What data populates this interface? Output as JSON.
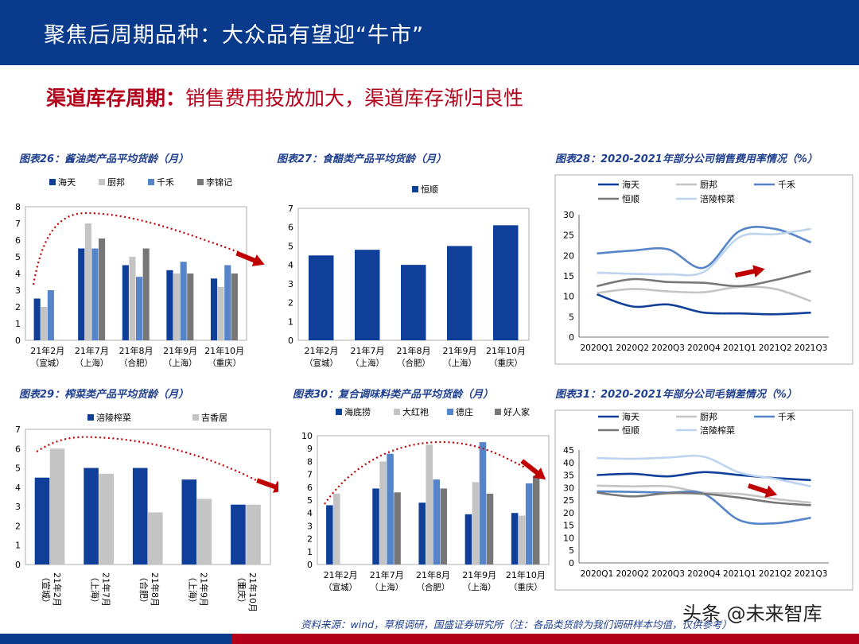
{
  "header": {
    "title": "聚焦后周期品种：大众品有望迎“牛市”"
  },
  "subtitle": {
    "lead": "渠道库存周期：",
    "rest": "销售费用投放加大，渠道库存渐归良性"
  },
  "source": "资料来源：wind，草根调研，国盛证券研究所（注：各品类货龄为我们调研样本均值，仅供参考）",
  "watermark": "头条 @未来智库",
  "colors": {
    "navy": "#0f3f99",
    "gray": "#c4c4c4",
    "blue": "#5585c8",
    "dark": "#777777",
    "light": "#bcd4ee",
    "red": "#c00000"
  },
  "chart_data": [
    {
      "id": "c26",
      "type": "bar",
      "title": "图表26：酱油类产品平均货龄（月）",
      "categories": [
        "21年2月",
        "21年7月",
        "21年8月",
        "21年9月",
        "21年10月"
      ],
      "sublabels": [
        "（宣城）",
        "（上海）",
        "（合肥）",
        "（上海）",
        "（重庆）"
      ],
      "ylim": [
        0,
        8
      ],
      "yticks": [
        0,
        1,
        2,
        3,
        4,
        5,
        6,
        7,
        8
      ],
      "series": [
        {
          "name": "海天",
          "values": [
            2.5,
            5.5,
            4.5,
            4.2,
            3.7
          ]
        },
        {
          "name": "厨邦",
          "values": [
            2.0,
            7.0,
            5.0,
            4.0,
            3.2
          ]
        },
        {
          "name": "千禾",
          "values": [
            3.0,
            5.5,
            3.8,
            4.7,
            4.5
          ]
        },
        {
          "name": "李锦记",
          "values": [
            null,
            6.1,
            5.5,
            4.0,
            4.0
          ]
        }
      ]
    },
    {
      "id": "c27",
      "type": "bar",
      "title": "图表27：食醋类产品平均货龄（月）",
      "categories": [
        "21年2月",
        "21年7月",
        "21年8月",
        "21年9月",
        "21年10月"
      ],
      "sublabels": [
        "（宣城）",
        "（上海）",
        "（合肥）",
        "（上海）",
        "（重庆）"
      ],
      "ylim": [
        0,
        7
      ],
      "yticks": [
        0,
        1,
        2,
        3,
        4,
        5,
        6,
        7
      ],
      "series": [
        {
          "name": "恒顺",
          "values": [
            4.5,
            4.8,
            4.0,
            5.0,
            6.1
          ]
        }
      ]
    },
    {
      "id": "c28",
      "type": "line",
      "title": "图表28：2020-2021年部分公司销售费用率情况（%）",
      "categories": [
        "2020Q1",
        "2020Q2",
        "2020Q3",
        "2020Q4",
        "2021Q1",
        "2021Q2",
        "2021Q3"
      ],
      "ylim": [
        0,
        30
      ],
      "yticks": [
        0,
        5,
        10,
        15,
        20,
        25,
        30
      ],
      "series": [
        {
          "name": "海天",
          "values": [
            10.5,
            7.5,
            8.0,
            6.0,
            5.8,
            5.6,
            6.0
          ]
        },
        {
          "name": "厨邦",
          "values": [
            10.8,
            11.8,
            11.2,
            11.0,
            12.3,
            11.8,
            8.8
          ]
        },
        {
          "name": "千禾",
          "values": [
            20.5,
            21.2,
            21.5,
            17.0,
            26.0,
            26.5,
            23.2
          ]
        },
        {
          "name": "恒顺",
          "values": [
            12.5,
            14.2,
            13.5,
            13.3,
            12.5,
            14.0,
            16.2
          ]
        },
        {
          "name": "涪陵榨菜",
          "values": [
            15.8,
            15.5,
            15.4,
            16.0,
            24.5,
            25.2,
            26.5
          ]
        }
      ]
    },
    {
      "id": "c29",
      "type": "bar",
      "title": "图表29：榨菜类产品平均货龄（月）",
      "categories": [
        "21年2月",
        "21年7月",
        "21年8月",
        "21年9月",
        "21年10月"
      ],
      "sublabels": [
        "（宣城）",
        "（上海）",
        "（合肥）",
        "（上海）",
        "（重庆）"
      ],
      "ylim": [
        0,
        7
      ],
      "yticks": [
        0,
        1,
        2,
        3,
        4,
        5,
        6,
        7
      ],
      "series": [
        {
          "name": "涪陵榨菜",
          "values": [
            4.5,
            5.0,
            5.0,
            4.4,
            3.1
          ]
        },
        {
          "name": "吉香居",
          "values": [
            6.0,
            4.7,
            2.7,
            3.4,
            3.1
          ]
        }
      ]
    },
    {
      "id": "c30",
      "type": "bar",
      "title": "图表30：复合调味料类产品平均货龄（月）",
      "categories": [
        "21年2月",
        "21年7月",
        "21年8月",
        "21年9月",
        "21年10月"
      ],
      "sublabels": [
        "（宣城）",
        "（上海）",
        "（合肥）",
        "（上海）",
        "（重庆）"
      ],
      "ylim": [
        0,
        10
      ],
      "yticks": [
        0,
        1,
        2,
        3,
        4,
        5,
        6,
        7,
        8,
        9,
        10
      ],
      "series": [
        {
          "name": "海底捞",
          "values": [
            4.6,
            5.9,
            4.8,
            3.9,
            4.0
          ]
        },
        {
          "name": "大红袍",
          "values": [
            5.5,
            8.0,
            9.3,
            6.4,
            3.8
          ]
        },
        {
          "name": "德庄",
          "values": [
            null,
            8.6,
            6.6,
            9.5,
            6.3
          ]
        },
        {
          "name": "好人家",
          "values": [
            null,
            5.6,
            5.9,
            5.5,
            6.9
          ]
        }
      ]
    },
    {
      "id": "c31",
      "type": "line",
      "title": "图表31：2020-2021年部分公司毛销差情况（%）",
      "categories": [
        "2020Q1",
        "2020Q2",
        "2020Q3",
        "2020Q4",
        "2021Q1",
        "2021Q2",
        "2021Q3"
      ],
      "ylim": [
        0,
        45
      ],
      "yticks": [
        0,
        5,
        10,
        15,
        20,
        25,
        30,
        35,
        40,
        45
      ],
      "series": [
        {
          "name": "海天",
          "values": [
            35.0,
            35.5,
            34.5,
            36.2,
            35.0,
            33.8,
            33.0
          ]
        },
        {
          "name": "厨邦",
          "values": [
            30.8,
            30.5,
            30.5,
            28.0,
            27.5,
            25.5,
            24.0
          ]
        },
        {
          "name": "千禾",
          "values": [
            28.5,
            28.3,
            28.0,
            27.5,
            17.0,
            15.8,
            18.0
          ]
        },
        {
          "name": "恒顺",
          "values": [
            28.0,
            26.5,
            27.8,
            27.5,
            26.0,
            24.0,
            23.0
          ]
        },
        {
          "name": "涪陵榨菜",
          "values": [
            41.8,
            41.5,
            42.0,
            42.3,
            36.0,
            33.5,
            30.5
          ]
        }
      ]
    }
  ]
}
